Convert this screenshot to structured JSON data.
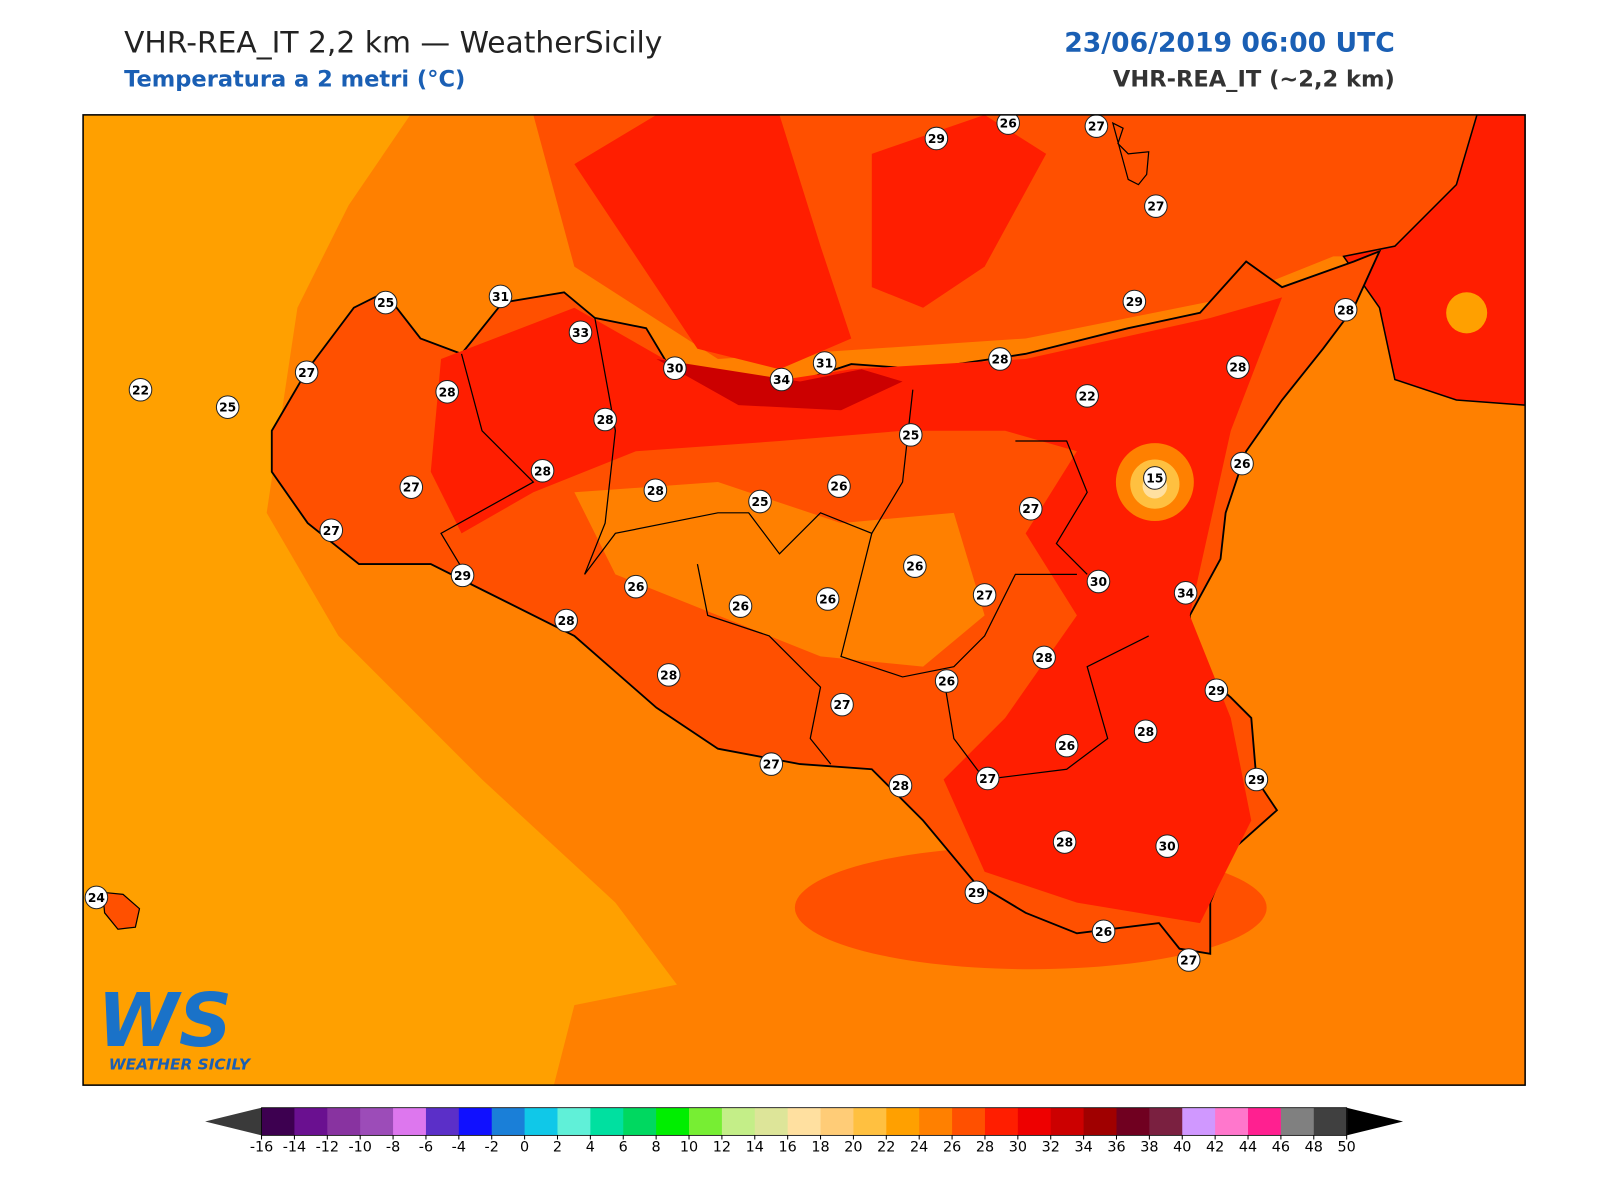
{
  "header": {
    "title": "VHR-REA_IT 2,2 km — WeatherSicily",
    "subtitle": "Temperatura a 2 metri (°C)",
    "date": "23/06/2019 06:00 UTC",
    "model": "VHR-REA_IT (~2,2 km)"
  },
  "logo": {
    "mark": "WS",
    "name": "WEATHER SICILY"
  },
  "stations": [
    29,
    26,
    27,
    27,
    25,
    31,
    33,
    30,
    34,
    31,
    28,
    29,
    28,
    28,
    22,
    25,
    27,
    28,
    28,
    22,
    25,
    26,
    15,
    28,
    27,
    28,
    26,
    25,
    27,
    27,
    29,
    26,
    26,
    26,
    26,
    27,
    30,
    34,
    28,
    28,
    28,
    26,
    29,
    27,
    28,
    26,
    27,
    28,
    27,
    29,
    28,
    30,
    29,
    26,
    27,
    24
  ],
  "colorbar": {
    "ticks": [
      -16,
      -14,
      -12,
      -10,
      -8,
      -6,
      -4,
      -2,
      0,
      2,
      4,
      6,
      8,
      10,
      12,
      14,
      16,
      18,
      20,
      22,
      24,
      26,
      28,
      30,
      32,
      34,
      36,
      38,
      40,
      42,
      44,
      46,
      48,
      50
    ],
    "colors": [
      "#3d0050",
      "#6a1090",
      "#8833a0",
      "#9c4cb8",
      "#dd77ee",
      "#5b2fc8",
      "#1010ff",
      "#1a7fd8",
      "#10c8e8",
      "#60f0d8",
      "#00e0a0",
      "#00d860",
      "#00ee00",
      "#77ee33",
      "#c4ee88",
      "#dde599",
      "#ffe0a0",
      "#ffcc77",
      "#ffc040",
      "#ffa000",
      "#ff8000",
      "#ff5000",
      "#ff1e00",
      "#ee0000",
      "#cc0000",
      "#a00000",
      "#700020",
      "#7a2040",
      "#d098ff",
      "#ff77cc",
      "#ff2090",
      "#808080",
      "#404040"
    ],
    "under_color": "#3a3a3a",
    "over_color": "#000000"
  }
}
